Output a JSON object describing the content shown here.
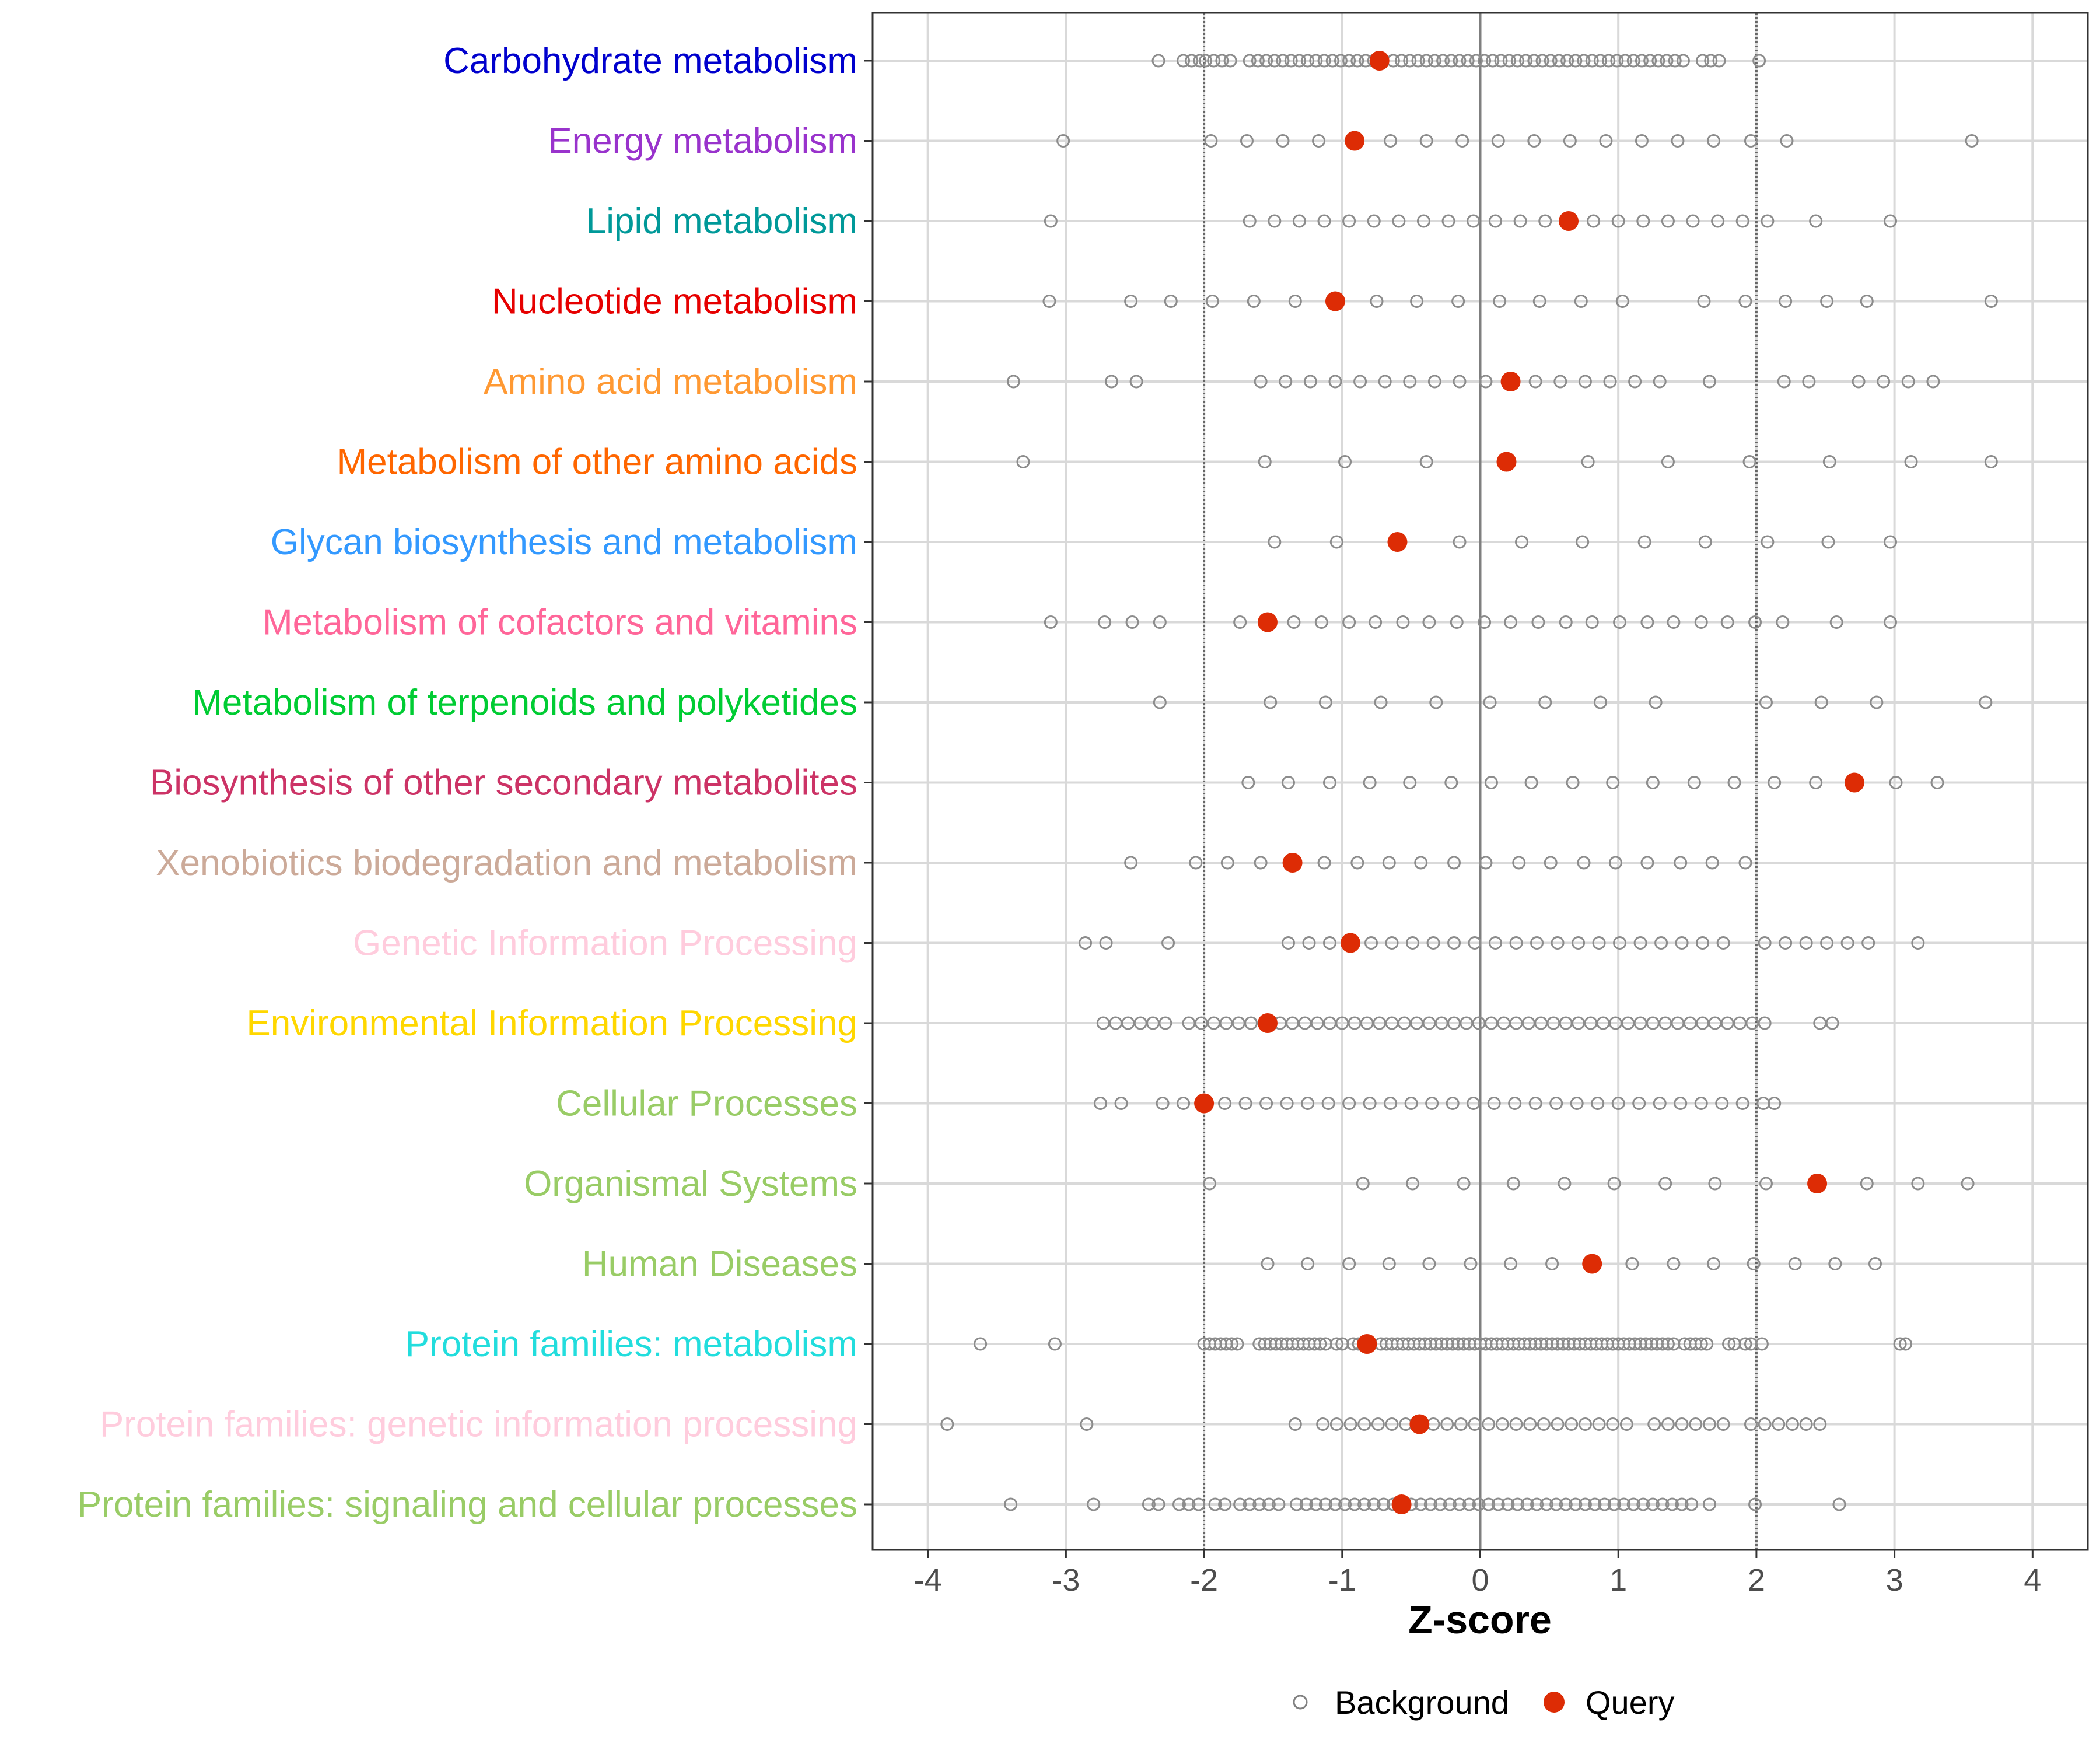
{
  "chart_data": {
    "type": "scatter",
    "title": "",
    "xlabel": "Z-score",
    "ylabel": "",
    "xlim": [
      -4.4,
      4.4
    ],
    "x_ticks": [
      -4,
      -3,
      -2,
      -1,
      0,
      1,
      2,
      3,
      4
    ],
    "x_tick_labels": [
      "-4",
      "-3",
      "-2",
      "-1",
      "0",
      "1",
      "2",
      "3",
      "4"
    ],
    "reference_lines": [
      {
        "x": 0,
        "style": "solid"
      },
      {
        "x": -2,
        "style": "dotted"
      },
      {
        "x": 2,
        "style": "dotted"
      }
    ],
    "grid": true,
    "legend": {
      "placement": "bottom",
      "entries": [
        {
          "name": "Background",
          "marker": "open-circle",
          "color": "#808080"
        },
        {
          "name": "Query",
          "marker": "filled-circle",
          "color": "#dd2c05"
        }
      ]
    },
    "categories": [
      {
        "label": "Carbohydrate metabolism",
        "color": "#0000cd",
        "query": -0.73,
        "background": [
          -2.33,
          -2.15,
          -2.09,
          -2.03,
          -1.99,
          -1.93,
          -1.87,
          -1.81,
          -1.67,
          -1.61,
          -1.55,
          -1.49,
          -1.43,
          -1.37,
          -1.31,
          -1.25,
          -1.19,
          -1.13,
          -1.07,
          -1.01,
          -0.95,
          -0.89,
          -0.83,
          -0.77,
          -0.63,
          -0.57,
          -0.51,
          -0.45,
          -0.39,
          -0.33,
          -0.27,
          -0.21,
          -0.15,
          -0.09,
          -0.03,
          0.03,
          0.09,
          0.15,
          0.21,
          0.27,
          0.33,
          0.39,
          0.45,
          0.51,
          0.57,
          0.63,
          0.69,
          0.75,
          0.81,
          0.87,
          0.93,
          0.99,
          1.05,
          1.11,
          1.17,
          1.23,
          1.29,
          1.35,
          1.41,
          1.47,
          1.61,
          1.67,
          1.73,
          2.02
        ]
      },
      {
        "label": "Energy metabolism",
        "color": "#9933cc",
        "query": -0.91,
        "background": [
          -3.02,
          -1.95,
          -1.69,
          -1.43,
          -1.17,
          -0.65,
          -0.39,
          -0.13,
          0.13,
          0.39,
          0.65,
          0.91,
          1.17,
          1.43,
          1.69,
          1.96,
          2.22,
          3.56
        ]
      },
      {
        "label": "Lipid metabolism",
        "color": "#009999",
        "query": 0.64,
        "background": [
          -3.11,
          -1.67,
          -1.49,
          -1.31,
          -1.13,
          -0.95,
          -0.77,
          -0.59,
          -0.41,
          -0.23,
          -0.05,
          0.11,
          0.29,
          0.47,
          0.82,
          1.0,
          1.18,
          1.36,
          1.54,
          1.72,
          1.9,
          2.08,
          2.43,
          2.97
        ]
      },
      {
        "label": "Nucleotide metabolism",
        "color": "#e60000",
        "query": -1.05,
        "background": [
          -3.12,
          -2.53,
          -2.24,
          -1.94,
          -1.64,
          -1.34,
          -0.75,
          -0.46,
          -0.16,
          0.14,
          0.43,
          0.73,
          1.03,
          1.62,
          1.92,
          2.21,
          2.51,
          2.8,
          3.7
        ]
      },
      {
        "label": "Amino acid metabolism",
        "color": "#ff9933",
        "query": 0.22,
        "background": [
          -3.38,
          -2.67,
          -2.49,
          -1.59,
          -1.41,
          -1.23,
          -1.05,
          -0.87,
          -0.69,
          -0.51,
          -0.33,
          -0.15,
          0.04,
          0.4,
          0.58,
          0.76,
          0.94,
          1.12,
          1.3,
          1.66,
          2.2,
          2.38,
          2.74,
          2.92,
          3.1,
          3.28
        ]
      },
      {
        "label": "Metabolism of other amino acids",
        "color": "#ff6600",
        "query": 0.19,
        "background": [
          -3.31,
          -1.56,
          -0.98,
          -0.39,
          0.78,
          1.36,
          1.95,
          2.53,
          3.12,
          3.7
        ]
      },
      {
        "label": "Glycan biosynthesis and metabolism",
        "color": "#3399ff",
        "query": -0.6,
        "background": [
          -1.49,
          -1.04,
          -0.15,
          0.3,
          0.74,
          1.19,
          1.63,
          2.08,
          2.52,
          2.97
        ]
      },
      {
        "label": "Metabolism of cofactors and vitamins",
        "color": "#ff6699",
        "query": -1.54,
        "background": [
          -3.11,
          -2.72,
          -2.52,
          -2.32,
          -1.74,
          -1.35,
          -1.15,
          -0.95,
          -0.76,
          -0.56,
          -0.37,
          -0.17,
          0.03,
          0.22,
          0.42,
          0.62,
          0.81,
          1.01,
          1.21,
          1.4,
          1.6,
          1.79,
          1.99,
          2.19,
          2.58,
          2.97
        ]
      },
      {
        "label": "Metabolism of terpenoids and polyketides",
        "color": "#00cc33",
        "query": null,
        "background": [
          -2.32,
          -1.52,
          -1.12,
          -0.72,
          -0.32,
          0.07,
          0.47,
          0.87,
          1.27,
          2.07,
          2.47,
          2.87,
          3.66
        ]
      },
      {
        "label": "Biosynthesis of other secondary metabolites",
        "color": "#cc3366",
        "query": 2.71,
        "background": [
          -1.68,
          -1.39,
          -1.09,
          -0.8,
          -0.51,
          -0.21,
          0.08,
          0.37,
          0.67,
          0.96,
          1.25,
          1.55,
          1.84,
          2.13,
          2.43,
          3.01,
          3.31
        ]
      },
      {
        "label": "Xenobiotics biodegradation and metabolism",
        "color": "#ccaa99",
        "query": -1.36,
        "background": [
          -2.53,
          -2.06,
          -1.83,
          -1.59,
          -1.13,
          -0.89,
          -0.66,
          -0.43,
          -0.19,
          0.04,
          0.28,
          0.51,
          0.75,
          0.98,
          1.21,
          1.45,
          1.68,
          1.92
        ]
      },
      {
        "label": "Genetic Information Processing",
        "color": "#ffccdd",
        "query": -0.94,
        "background": [
          -2.86,
          -2.71,
          -2.26,
          -1.39,
          -1.24,
          -1.09,
          -0.79,
          -0.64,
          -0.49,
          -0.34,
          -0.19,
          -0.04,
          0.11,
          0.26,
          0.41,
          0.56,
          0.71,
          0.86,
          1.01,
          1.16,
          1.31,
          1.46,
          1.61,
          1.76,
          2.06,
          2.21,
          2.36,
          2.51,
          2.66,
          2.81,
          3.17
        ]
      },
      {
        "label": "Environmental Information Processing",
        "color": "#ffd700",
        "query": -1.54,
        "background": [
          -2.73,
          -2.64,
          -2.55,
          -2.46,
          -2.37,
          -2.28,
          -2.11,
          -2.02,
          -1.93,
          -1.84,
          -1.75,
          -1.66,
          -1.45,
          -1.36,
          -1.27,
          -1.18,
          -1.09,
          -1.0,
          -0.91,
          -0.82,
          -0.73,
          -0.64,
          -0.55,
          -0.46,
          -0.37,
          -0.28,
          -0.19,
          -0.1,
          -0.01,
          0.08,
          0.17,
          0.26,
          0.35,
          0.44,
          0.53,
          0.62,
          0.71,
          0.8,
          0.89,
          0.98,
          1.07,
          1.16,
          1.25,
          1.34,
          1.43,
          1.52,
          1.61,
          1.7,
          1.79,
          1.88,
          1.97,
          2.06,
          2.46,
          2.55
        ]
      },
      {
        "label": "Cellular Processes",
        "color": "#99cc66",
        "query": -2.0,
        "background": [
          -2.75,
          -2.6,
          -2.3,
          -2.15,
          -1.85,
          -1.7,
          -1.55,
          -1.4,
          -1.25,
          -1.1,
          -0.95,
          -0.8,
          -0.65,
          -0.5,
          -0.35,
          -0.2,
          -0.05,
          0.1,
          0.25,
          0.4,
          0.55,
          0.7,
          0.85,
          1.0,
          1.15,
          1.3,
          1.45,
          1.6,
          1.75,
          1.9,
          2.05,
          2.13
        ]
      },
      {
        "label": "Organismal Systems",
        "color": "#99cc66",
        "query": 2.44,
        "background": [
          -1.96,
          -0.85,
          -0.49,
          -0.12,
          0.24,
          0.61,
          0.97,
          1.34,
          1.7,
          2.07,
          2.8,
          3.17,
          3.53
        ]
      },
      {
        "label": "Human Diseases",
        "color": "#99cc66",
        "query": 0.81,
        "background": [
          -1.54,
          -1.25,
          -0.95,
          -0.66,
          -0.37,
          -0.07,
          0.22,
          0.52,
          1.1,
          1.4,
          1.69,
          1.98,
          2.28,
          2.57,
          2.86
        ]
      },
      {
        "label": "Protein families: metabolism",
        "color": "#22dddd",
        "query": -0.82,
        "background": [
          -3.62,
          -3.08,
          -2.0,
          -1.96,
          -1.92,
          -1.88,
          -1.84,
          -1.8,
          -1.76,
          -1.6,
          -1.56,
          -1.52,
          -1.48,
          -1.44,
          -1.4,
          -1.36,
          -1.32,
          -1.28,
          -1.24,
          -1.2,
          -1.16,
          -1.12,
          -1.04,
          -1.0,
          -0.92,
          -0.88,
          -0.72,
          -0.68,
          -0.64,
          -0.6,
          -0.56,
          -0.52,
          -0.48,
          -0.44,
          -0.4,
          -0.36,
          -0.32,
          -0.28,
          -0.24,
          -0.2,
          -0.16,
          -0.12,
          -0.08,
          -0.04,
          0.0,
          0.04,
          0.08,
          0.12,
          0.16,
          0.2,
          0.24,
          0.28,
          0.32,
          0.36,
          0.4,
          0.44,
          0.48,
          0.52,
          0.56,
          0.6,
          0.64,
          0.68,
          0.72,
          0.76,
          0.8,
          0.84,
          0.88,
          0.92,
          0.96,
          1.0,
          1.04,
          1.08,
          1.12,
          1.16,
          1.2,
          1.24,
          1.28,
          1.32,
          1.36,
          1.4,
          1.48,
          1.52,
          1.56,
          1.6,
          1.64,
          1.8,
          1.84,
          1.92,
          1.96,
          2.04,
          3.04,
          3.08
        ]
      },
      {
        "label": "Protein families: genetic information processing",
        "color": "#ffccdd",
        "query": -0.44,
        "background": [
          -3.86,
          -2.85,
          -1.34,
          -1.14,
          -1.04,
          -0.94,
          -0.84,
          -0.74,
          -0.64,
          -0.54,
          -0.34,
          -0.24,
          -0.14,
          -0.04,
          0.06,
          0.16,
          0.26,
          0.36,
          0.46,
          0.56,
          0.66,
          0.76,
          0.86,
          0.96,
          1.06,
          1.26,
          1.36,
          1.46,
          1.56,
          1.66,
          1.76,
          1.96,
          2.06,
          2.16,
          2.26,
          2.36,
          2.46
        ]
      },
      {
        "label": "Protein families: signaling and cellular processes",
        "color": "#99cc66",
        "query": -0.57,
        "background": [
          -3.4,
          -2.8,
          -2.4,
          -2.33,
          -2.18,
          -2.11,
          -2.04,
          -1.92,
          -1.85,
          -1.74,
          -1.67,
          -1.6,
          -1.53,
          -1.46,
          -1.33,
          -1.26,
          -1.19,
          -1.12,
          -1.05,
          -0.98,
          -0.91,
          -0.84,
          -0.77,
          -0.7,
          -0.63,
          -0.5,
          -0.43,
          -0.36,
          -0.29,
          -0.22,
          -0.15,
          -0.08,
          -0.01,
          0.06,
          0.13,
          0.2,
          0.27,
          0.34,
          0.41,
          0.48,
          0.55,
          0.62,
          0.69,
          0.76,
          0.83,
          0.9,
          0.97,
          1.04,
          1.11,
          1.18,
          1.25,
          1.32,
          1.39,
          1.46,
          1.53,
          1.66,
          1.99,
          2.6
        ]
      }
    ]
  }
}
